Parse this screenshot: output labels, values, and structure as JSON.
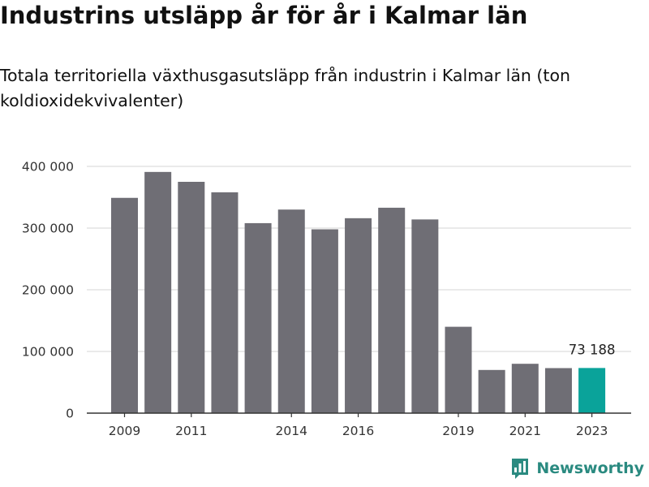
{
  "chart_data": {
    "type": "bar",
    "title": "Industrins utsläpp år för år i Kalmar län",
    "subtitle": "Totala territoriella växthusgasutsläpp från industrin i Kalmar län (ton koldioxidekvivalenter)",
    "categories": [
      "2009",
      "2010",
      "2011",
      "2012",
      "2013",
      "2014",
      "2015",
      "2016",
      "2017",
      "2018",
      "2019",
      "2020",
      "2021",
      "2022",
      "2023"
    ],
    "values": [
      349000,
      391000,
      375000,
      358000,
      308000,
      330000,
      298000,
      316000,
      333000,
      314000,
      140000,
      70000,
      80000,
      73000,
      73188
    ],
    "x_tick_labels": [
      "2009",
      "2011",
      "2014",
      "2016",
      "2019",
      "2021",
      "2023"
    ],
    "y_ticks": [
      0,
      100000,
      200000,
      300000,
      400000
    ],
    "y_tick_labels": [
      "0",
      "100 000",
      "200 000",
      "300 000",
      "400 000"
    ],
    "ylim": [
      0,
      400000
    ],
    "grid": true,
    "colors": {
      "bar": "#6f6e75",
      "highlight": "#0aa39a",
      "grid": "#dddddd",
      "axis": "#333333"
    },
    "highlight_index": 14,
    "annotations": [
      {
        "category": "2023",
        "text": "73 188"
      }
    ]
  },
  "branding": {
    "logo_text": "Newsworthy",
    "logo_icon": "newsworthy-bar-chart-icon"
  }
}
